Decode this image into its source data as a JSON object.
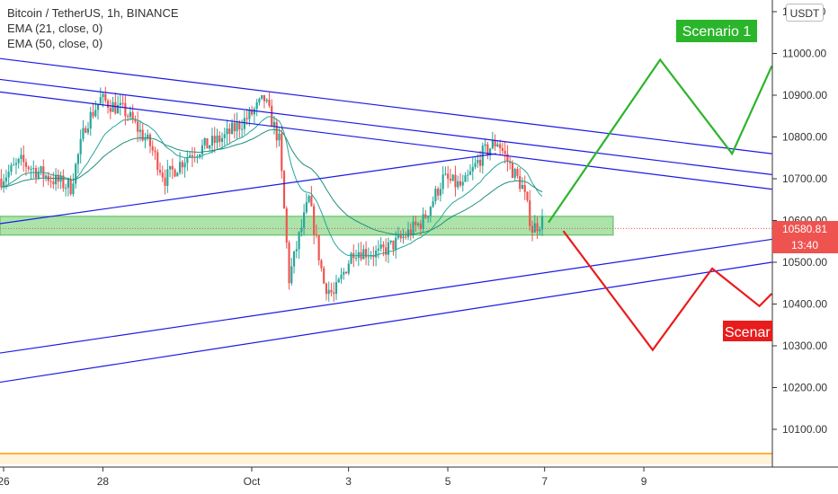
{
  "legend": {
    "symbol": "Bitcoin / TetherUS, 1h, BINANCE",
    "ema21": "EMA (21, close, 0)",
    "ema50": "EMA (50, close, 0)"
  },
  "currency_button": "USDT",
  "price_label": "10580.81",
  "countdown_label": "13:40",
  "scenario_1_label": "Scenario 1",
  "scenario_2_label": "Scenar",
  "colors": {
    "up_candle": "#26a69a",
    "down_candle": "#ef5350",
    "trendline": "#1a1ae6",
    "support_zone": "#8fd98f",
    "scenario_up": "#2bb52b",
    "scenario_down": "#e81c1c",
    "price_label_bg": "#ef5350",
    "orange_line": "#ff9800"
  },
  "chart_data": {
    "type": "candlestick",
    "ylim": [
      10020,
      11160
    ],
    "y_ticks": [
      "11100.00",
      "11000.00",
      "10900.00",
      "10800.00",
      "10700.00",
      "10600.00",
      "10500.00",
      "10400.00",
      "10300.00",
      "10200.00",
      "10100.00"
    ],
    "x_ticks": [
      "26",
      "28",
      "Oct",
      "3",
      "5",
      "7",
      "9"
    ],
    "last_price": 10580.81,
    "support_zone": [
      10565,
      10610
    ],
    "close_path": [
      {
        "t": 0,
        "p": 10700
      },
      {
        "t": 8,
        "p": 10740
      },
      {
        "t": 20,
        "p": 10700
      },
      {
        "t": 28,
        "p": 10680
      },
      {
        "t": 34,
        "p": 10830
      },
      {
        "t": 40,
        "p": 10890
      },
      {
        "t": 50,
        "p": 10860
      },
      {
        "t": 60,
        "p": 10780
      },
      {
        "t": 66,
        "p": 10700
      },
      {
        "t": 76,
        "p": 10760
      },
      {
        "t": 90,
        "p": 10800
      },
      {
        "t": 100,
        "p": 10850
      },
      {
        "t": 106,
        "p": 10890
      },
      {
        "t": 112,
        "p": 10790
      },
      {
        "t": 116,
        "p": 10460
      },
      {
        "t": 120,
        "p": 10560
      },
      {
        "t": 124,
        "p": 10650
      },
      {
        "t": 130,
        "p": 10450
      },
      {
        "t": 134,
        "p": 10420
      },
      {
        "t": 142,
        "p": 10530
      },
      {
        "t": 152,
        "p": 10520
      },
      {
        "t": 160,
        "p": 10550
      },
      {
        "t": 170,
        "p": 10600
      },
      {
        "t": 178,
        "p": 10700
      },
      {
        "t": 186,
        "p": 10680
      },
      {
        "t": 194,
        "p": 10760
      },
      {
        "t": 200,
        "p": 10790
      },
      {
        "t": 206,
        "p": 10720
      },
      {
        "t": 210,
        "p": 10680
      },
      {
        "t": 214,
        "p": 10580
      },
      {
        "t": 218,
        "p": 10600
      }
    ],
    "trendlines": [
      {
        "t1": -3,
        "p1": 10990,
        "t2": 311,
        "p2": 10760
      },
      {
        "t1": -3,
        "p1": 10940,
        "t2": 311,
        "p2": 10710
      },
      {
        "t1": -3,
        "p1": 10910,
        "t2": 311,
        "p2": 10675
      },
      {
        "t1": -3,
        "p1": 10590,
        "t2": 200,
        "p2": 10760
      },
      {
        "t1": -3,
        "p1": 10280,
        "t2": 311,
        "p2": 10555
      },
      {
        "t1": -3,
        "p1": 10210,
        "t2": 311,
        "p2": 10500
      }
    ],
    "scenario_up": [
      {
        "t": 221,
        "p": 10595
      },
      {
        "t": 266,
        "p": 10985
      },
      {
        "t": 295,
        "p": 10760
      },
      {
        "t": 311,
        "p": 10970
      }
    ],
    "scenario_down": [
      {
        "t": 227,
        "p": 10575
      },
      {
        "t": 263,
        "p": 10290
      },
      {
        "t": 287,
        "p": 10485
      },
      {
        "t": 306,
        "p": 10395
      },
      {
        "t": 311,
        "p": 10425
      }
    ]
  }
}
